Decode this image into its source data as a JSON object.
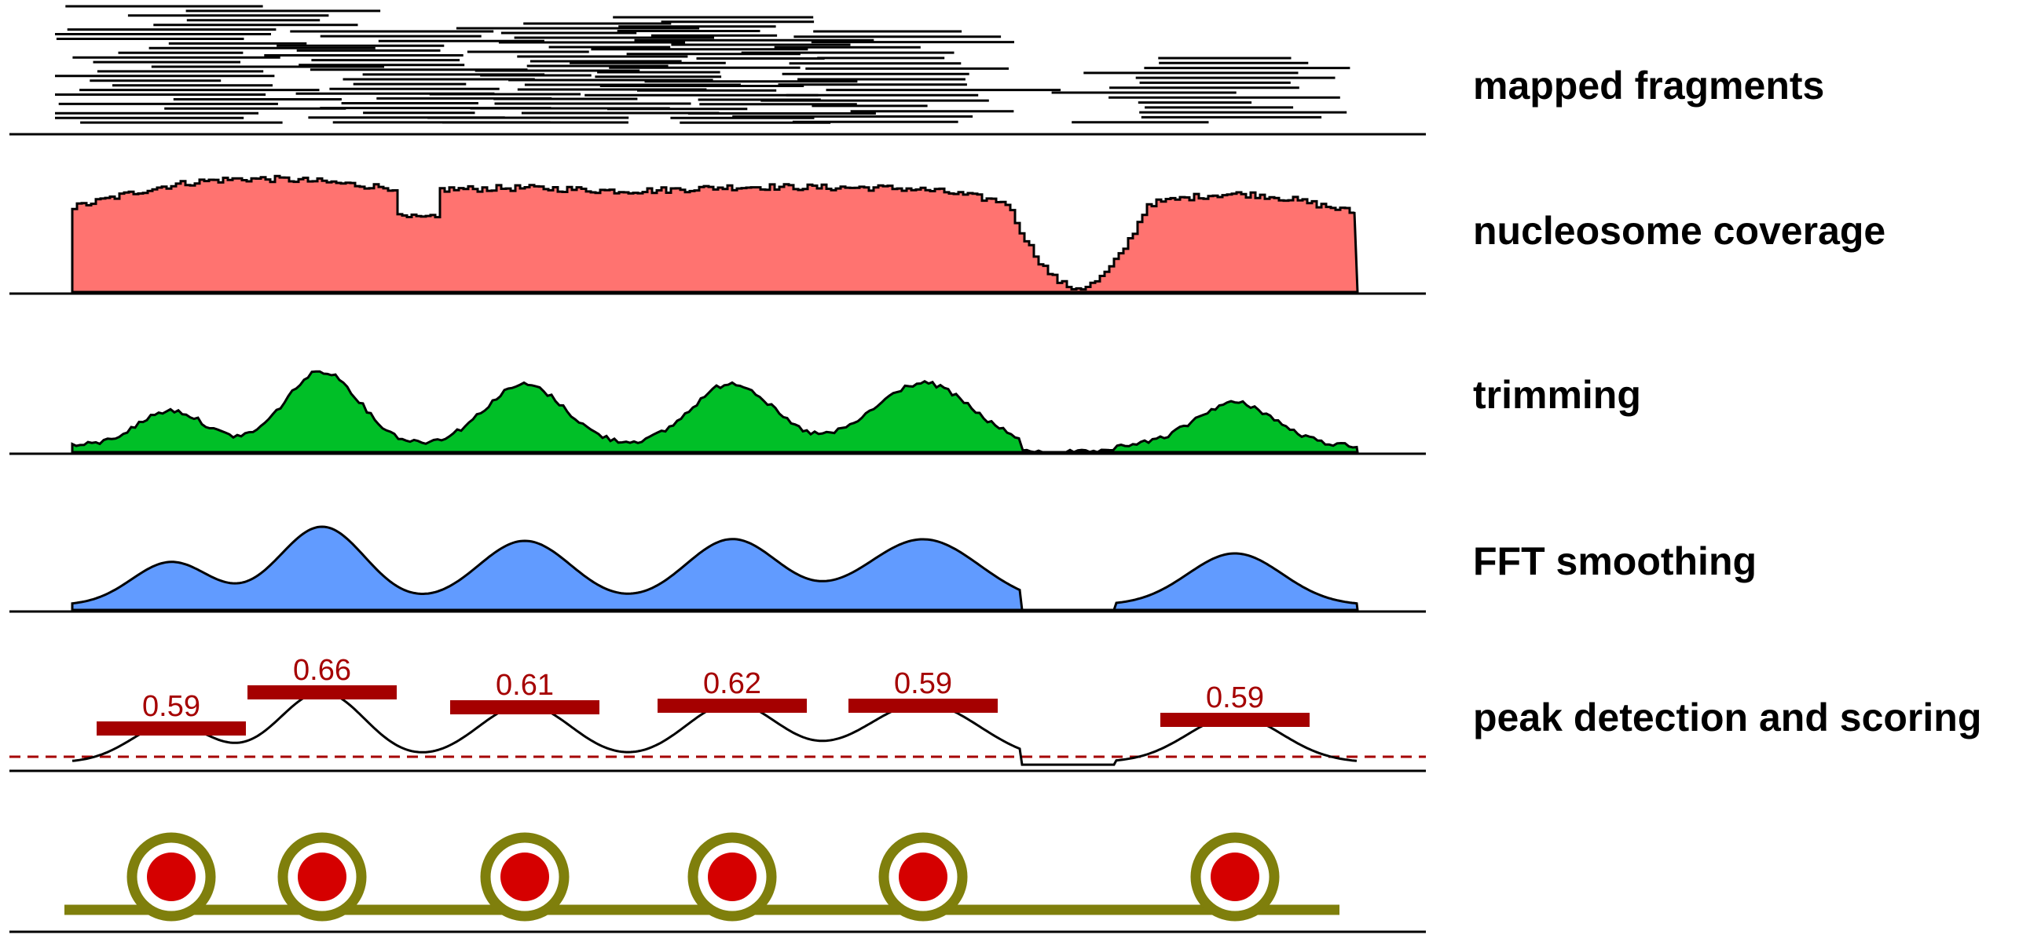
{
  "figure": {
    "panels": [
      {
        "id": "fragments",
        "label": "mapped fragments"
      },
      {
        "id": "coverage",
        "label": "nucleosome coverage"
      },
      {
        "id": "trimming",
        "label": "trimming"
      },
      {
        "id": "fft",
        "label": "FFT smoothing"
      },
      {
        "id": "peaks",
        "label": "peak detection and scoring"
      },
      {
        "id": "nucleosomes",
        "label": ""
      }
    ],
    "peak_scores": [
      "0.59",
      "0.66",
      "0.61",
      "0.62",
      "0.59",
      "0.59"
    ],
    "colors": {
      "coverage_fill": "#ff7370",
      "trimming_fill": "#00bf27",
      "fft_fill": "#619bff",
      "score_bar": "#a50000",
      "threshold_line": "#a50000",
      "nucleosome_ring": "#7f7f0c",
      "nucleosome_core": "#d50000",
      "dna_strand": "#7f7f0c"
    }
  }
}
